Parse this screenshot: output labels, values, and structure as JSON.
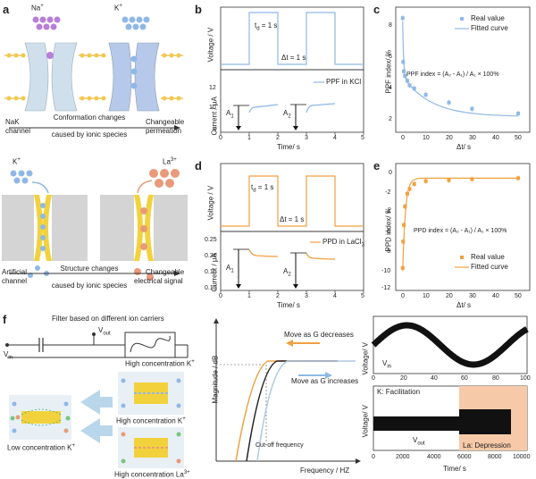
{
  "panel_letters": {
    "a": "a",
    "b": "b",
    "c": "c",
    "d": "d",
    "e": "e",
    "f": "f"
  },
  "panel_a": {
    "ion_left": "Na",
    "ion_left_sup": "+",
    "ion_right": "K",
    "ion_right_sup": "+",
    "channel_label_1": "NaK",
    "channel_label_2": "channel",
    "caption_1": "Conformation changes",
    "caption_2": "caused by ionic species",
    "result_1": "Changeable",
    "result_2": "permeation",
    "ion_left_2": "K",
    "ion_left_2_sup": "+",
    "ion_right_2": "La",
    "ion_right_2_sup": "3+",
    "channel2_label_1": "Artificial",
    "channel2_label_2": "channel",
    "caption2_1": "Structure changes",
    "caption2_2": "caused by ionic species",
    "result2_1": "Changeable",
    "result2_2": "electrical signal",
    "colors": {
      "purple": "#b77fd8",
      "blue": "#8fb8e6",
      "orange": "#e89a7a",
      "yellow": "#f2d23c",
      "gray": "#c8c8c8"
    }
  },
  "panel_b": {
    "top_ylabel": "Voltage / V",
    "td_label": "t",
    "td_sub": "d",
    "td_value": " = 1 s",
    "dt_label": "Δt = 1 s",
    "bottom_ylabel": "Current / μA",
    "legend": "PPF in KCl",
    "a1": "A",
    "a1_sub": "1",
    "a2": "A",
    "a2_sub": "2",
    "xlabel": "Time/ s",
    "yticks": [
      "12",
      "10",
      "8"
    ],
    "xticks": [
      "0",
      "1",
      "2",
      "3",
      "4",
      "5"
    ],
    "color": "#8fb8e6"
  },
  "panel_c": {
    "ylabel": "PPF index/ %",
    "xlabel": "Δt/ s",
    "formula": "PPF index = (A₂ - A₁) / A₁ × 100%",
    "legend_real": "Real value",
    "legend_fit": "Fitted curve",
    "yticks": [
      "8",
      "6",
      "4",
      "2"
    ],
    "xticks": [
      "0",
      "10",
      "20",
      "30",
      "40",
      "50"
    ],
    "color": "#8fb8e6"
  },
  "panel_d": {
    "top_ylabel": "Voltage / V",
    "td_label": "t",
    "td_sub": "d",
    "td_value": " = 1 s",
    "dt_label": "Δt = 1 s",
    "bottom_ylabel": "Current / μA",
    "legend": "PPD in LaCl",
    "legend_sub": "3",
    "a1": "A",
    "a1_sub": "1",
    "a2": "A",
    "a2_sub": "2",
    "xlabel": "Time/ s",
    "yticks": [
      "0.25",
      "0.20",
      "0.15",
      "0.10"
    ],
    "xticks": [
      "0",
      "1",
      "2",
      "3",
      "4",
      "5"
    ],
    "color": "#f0a040"
  },
  "panel_e": {
    "ylabel": "PPD index/ %",
    "xlabel": "Δt/ s",
    "formula": "PPD index = (A₂ - A₁) / A₁ × 100%",
    "legend_real": "Real value",
    "legend_fit": "Fitted curve",
    "yticks": [
      "0",
      "-2",
      "-4",
      "-6",
      "-8",
      "-10",
      "-12"
    ],
    "xticks": [
      "0",
      "10",
      "20",
      "30",
      "40",
      "50"
    ],
    "color": "#f0a040"
  },
  "panel_f": {
    "filter_title": "Filter based on different ion carriers",
    "vout": "V",
    "vout_sub": "out",
    "vin": "V",
    "vin_sub": "in",
    "high_k": "High concentration K",
    "high_k_sup": "+",
    "low_k": "Low concentration K",
    "low_k_sup": "+",
    "high_la": "High concentration La",
    "high_la_sup": "3+",
    "mag_ylabel": "Magnitude / dB",
    "freq_xlabel": "Frequency / HZ",
    "move_dec": "Move as G decreases",
    "move_inc": "Move as G increases",
    "cutoff": "Cut-off frequency",
    "sine_ylabel": "Voltage/ V",
    "sine_legend": "V",
    "sine_legend_sub": "in",
    "sine_xticks": [
      "0",
      "20",
      "40",
      "60",
      "80",
      "100"
    ],
    "resp_ylabel": "Voltage/ V",
    "k_fac": "K: Facilitation",
    "la_dep": "La: Depression",
    "resp_legend": "V",
    "resp_legend_sub": "out",
    "resp_xlabel": "Time/ s",
    "resp_xticks": [
      "0",
      "2000",
      "4000",
      "6000",
      "8000",
      "10000"
    ]
  },
  "chart_data": [
    {
      "type": "line",
      "panel": "c",
      "x": [
        0,
        0.2,
        0.5,
        1,
        2,
        3,
        5,
        10,
        20,
        30,
        50
      ],
      "values": [
        8.3,
        5.5,
        4.9,
        4.6,
        4.3,
        4.0,
        3.8,
        3.4,
        2.9,
        2.5,
        2.2
      ],
      "ylim": [
        1,
        9
      ],
      "xlim": [
        -3,
        55
      ]
    },
    {
      "type": "line",
      "panel": "e",
      "x": [
        0,
        0.2,
        0.5,
        1,
        2,
        3,
        5,
        10,
        20,
        30,
        50
      ],
      "values": [
        -10.2,
        -7.5,
        -5.8,
        -3.9,
        -2.6,
        -2.1,
        -1.6,
        -1.3,
        -1.2,
        -1.1,
        -1.0
      ],
      "ylim": [
        -12.5,
        0.5
      ],
      "xlim": [
        -3,
        55
      ]
    }
  ]
}
